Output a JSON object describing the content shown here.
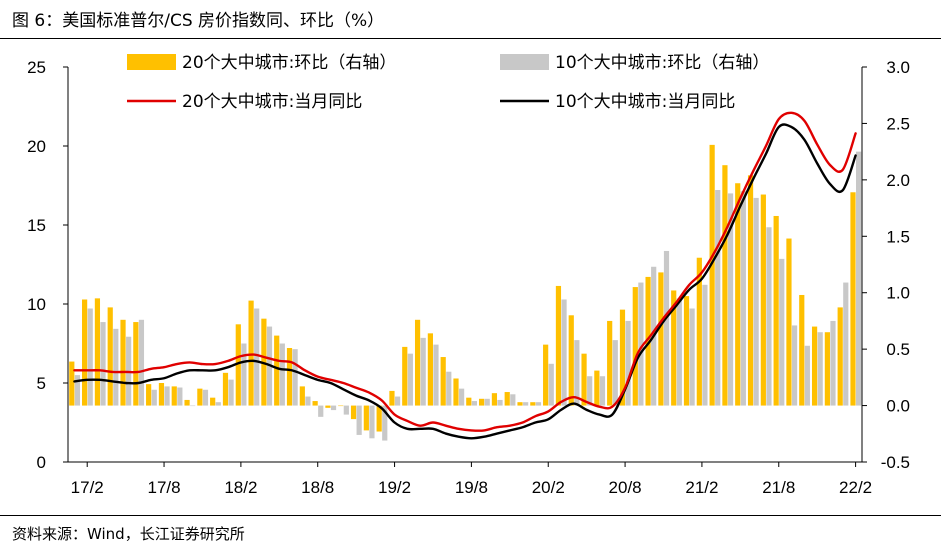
{
  "title": "图 6：美国标准普尔/CS 房价指数同、环比（%）",
  "source": "资料来源：Wind，长江证券研究所",
  "colors": {
    "bar20": "#FFC000",
    "bar10": "#C8C8C8",
    "line20": "#E00000",
    "line10": "#000000",
    "axis": "#000000"
  },
  "chart_data": {
    "type": "bar+line",
    "title": "美国标准普尔/CS 房价指数同、环比（%）",
    "left_axis": {
      "range": [
        0,
        25
      ],
      "ticks": [
        "0",
        "5",
        "10",
        "15",
        "20",
        "25"
      ]
    },
    "right_axis": {
      "range": [
        -0.5,
        3.0
      ],
      "ticks": [
        "-0.5",
        "0.0",
        "0.5",
        "1.0",
        "1.5",
        "2.0",
        "2.5",
        "3.0"
      ]
    },
    "x_tick_labels": [
      "17/2",
      "17/8",
      "18/2",
      "18/8",
      "19/2",
      "19/8",
      "20/2",
      "20/8",
      "21/2",
      "21/8",
      "22/2"
    ],
    "periods": [
      "17/1",
      "17/2",
      "17/3",
      "17/4",
      "17/5",
      "17/6",
      "17/7",
      "17/8",
      "17/9",
      "17/10",
      "17/11",
      "17/12",
      "18/1",
      "18/2",
      "18/3",
      "18/4",
      "18/5",
      "18/6",
      "18/7",
      "18/8",
      "18/9",
      "18/10",
      "18/11",
      "18/12",
      "19/1",
      "19/2",
      "19/3",
      "19/4",
      "19/5",
      "19/6",
      "19/7",
      "19/8",
      "19/9",
      "19/10",
      "19/11",
      "19/12",
      "20/1",
      "20/2",
      "20/3",
      "20/4",
      "20/5",
      "20/6",
      "20/7",
      "20/8",
      "20/9",
      "20/10",
      "20/11",
      "20/12",
      "21/1",
      "21/2",
      "21/3",
      "21/4",
      "21/5",
      "21/6",
      "21/7",
      "21/8",
      "21/9",
      "21/10",
      "21/11",
      "21/12",
      "22/1",
      "22/2"
    ],
    "legend": [
      {
        "label": "20个大中城市:环比（右轴）",
        "kind": "bar",
        "series": "mom20"
      },
      {
        "label": "10个大中城市:环比（右轴）",
        "kind": "bar",
        "series": "mom10"
      },
      {
        "label": "20个大中城市:当月同比",
        "kind": "line",
        "series": "yoy20"
      },
      {
        "label": "10个大中城市:当月同比",
        "kind": "line",
        "series": "yoy10"
      }
    ],
    "series": [
      {
        "name": "20个大中城市:环比（右轴）",
        "id": "mom20",
        "type": "bar",
        "axis": "right",
        "values": [
          0.39,
          0.94,
          0.95,
          0.87,
          0.76,
          0.74,
          0.19,
          0.2,
          0.17,
          0.05,
          0.15,
          0.07,
          0.29,
          0.72,
          0.93,
          0.77,
          0.62,
          0.51,
          0.17,
          0.04,
          -0.02,
          0.0,
          -0.12,
          -0.22,
          -0.23,
          0.13,
          0.52,
          0.76,
          0.64,
          0.43,
          0.24,
          0.07,
          0.06,
          0.11,
          0.12,
          0.03,
          0.03,
          0.54,
          1.06,
          0.8,
          0.46,
          0.31,
          0.75,
          0.85,
          1.05,
          1.14,
          1.18,
          1.02,
          0.97,
          1.31,
          2.31,
          2.13,
          1.97,
          2.04,
          1.87,
          1.68,
          1.48,
          0.98,
          0.7,
          0.65,
          0.87,
          1.89
        ]
      },
      {
        "name": "10个大中城市:环比（右轴）",
        "id": "mom10",
        "type": "bar",
        "axis": "right",
        "values": [
          0.27,
          0.86,
          0.74,
          0.68,
          0.61,
          0.76,
          0.14,
          0.17,
          0.16,
          0.0,
          0.14,
          0.03,
          0.23,
          0.55,
          0.86,
          0.7,
          0.55,
          0.5,
          0.08,
          -0.1,
          -0.04,
          -0.08,
          -0.26,
          -0.29,
          -0.31,
          0.08,
          0.46,
          0.6,
          0.54,
          0.3,
          0.15,
          0.04,
          0.06,
          0.05,
          0.1,
          0.03,
          0.03,
          0.37,
          0.94,
          0.58,
          0.26,
          0.26,
          0.58,
          0.75,
          1.09,
          1.23,
          1.37,
          0.95,
          0.86,
          1.07,
          1.91,
          1.88,
          1.9,
          1.84,
          1.58,
          1.3,
          0.71,
          0.53,
          0.65,
          0.75,
          1.09,
          2.25
        ]
      },
      {
        "name": "20个大中城市:当月同比",
        "id": "yoy20",
        "type": "line",
        "axis": "left",
        "values": [
          5.8,
          5.8,
          5.8,
          5.7,
          5.7,
          5.7,
          5.9,
          6.0,
          6.2,
          6.3,
          6.2,
          6.2,
          6.4,
          6.7,
          6.8,
          6.6,
          6.4,
          6.3,
          5.8,
          5.4,
          5.2,
          5.0,
          4.7,
          4.4,
          3.9,
          3.0,
          2.6,
          2.3,
          2.5,
          2.3,
          2.1,
          2.0,
          2.0,
          2.2,
          2.3,
          2.5,
          2.9,
          3.2,
          3.8,
          4.1,
          3.8,
          3.5,
          3.5,
          4.7,
          6.9,
          8.0,
          9.1,
          10.1,
          11.2,
          12.0,
          13.3,
          14.9,
          16.7,
          18.4,
          20.0,
          21.7,
          22.1,
          21.6,
          20.1,
          18.8,
          18.5,
          20.8
        ]
      },
      {
        "name": "10个大中城市:当月同比",
        "id": "yoy10",
        "type": "line",
        "axis": "left",
        "values": [
          5.1,
          5.2,
          5.2,
          5.1,
          5.0,
          5.0,
          5.2,
          5.3,
          5.6,
          5.8,
          5.8,
          5.8,
          6.0,
          6.3,
          6.4,
          6.2,
          5.9,
          5.8,
          5.5,
          5.2,
          5.0,
          4.6,
          4.2,
          3.9,
          3.4,
          2.5,
          2.1,
          2.1,
          2.1,
          1.8,
          1.6,
          1.5,
          1.6,
          1.8,
          2.0,
          2.2,
          2.5,
          2.7,
          3.3,
          3.7,
          3.3,
          3.0,
          3.0,
          4.6,
          6.6,
          7.7,
          8.9,
          9.9,
          10.9,
          11.6,
          12.9,
          14.4,
          16.2,
          17.9,
          19.5,
          21.2,
          21.2,
          20.4,
          18.9,
          17.6,
          17.2,
          19.4
        ]
      }
    ]
  }
}
